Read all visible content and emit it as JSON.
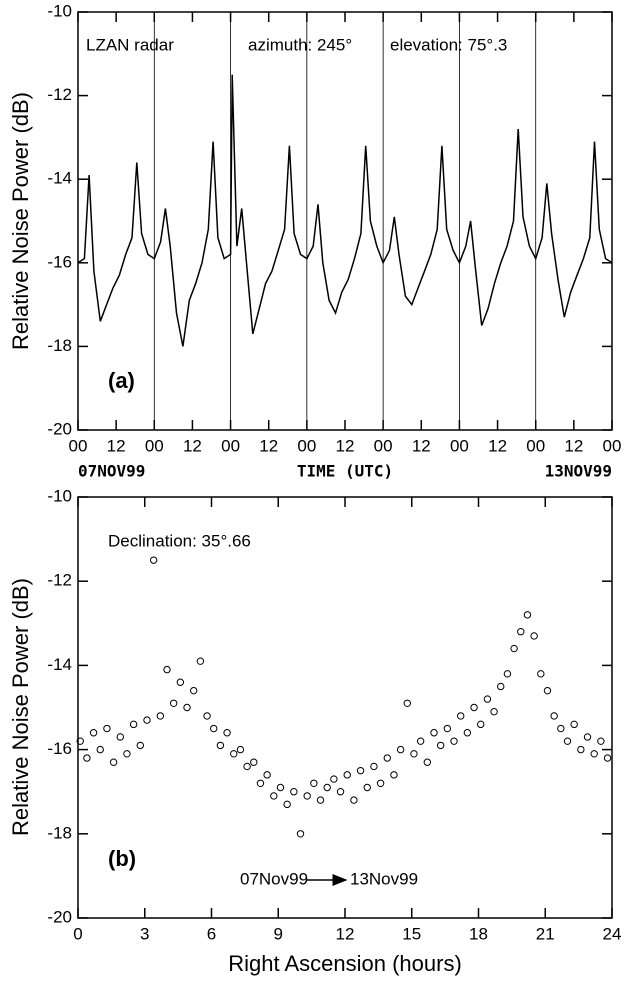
{
  "chart_data": [
    {
      "type": "line",
      "ylabel": "Relative Noise Power (dB)",
      "xlabel": "TIME (UTC)",
      "annotations": [
        "LZAN radar",
        "azimuth: 245°",
        "elevation: 75°.3",
        "(a)",
        "07NOV99",
        "13NOV99"
      ],
      "xlim": [
        0,
        168
      ],
      "ylim": [
        -20,
        -10
      ],
      "yticks": [
        -20,
        -18,
        -16,
        -14,
        -12,
        -10
      ],
      "xticks": [
        {
          "value": 0,
          "label": "00"
        },
        {
          "value": 12,
          "label": "12"
        },
        {
          "value": 24,
          "label": "00"
        },
        {
          "value": 36,
          "label": "12"
        },
        {
          "value": 48,
          "label": "00"
        },
        {
          "value": 60,
          "label": "12"
        },
        {
          "value": 72,
          "label": "00"
        },
        {
          "value": 84,
          "label": "12"
        },
        {
          "value": 96,
          "label": "00"
        },
        {
          "value": 108,
          "label": "12"
        },
        {
          "value": 120,
          "label": "00"
        },
        {
          "value": 132,
          "label": "12"
        },
        {
          "value": 144,
          "label": "00"
        },
        {
          "value": 156,
          "label": "12"
        },
        {
          "value": 168,
          "label": "00"
        }
      ],
      "vlines": [
        24,
        48,
        72,
        96,
        120,
        144
      ],
      "color": "#000000",
      "x": [
        0,
        2,
        3.5,
        5,
        7,
        9,
        11,
        13,
        15,
        17,
        18.5,
        20,
        22,
        24,
        26,
        27.5,
        29,
        31,
        33,
        35,
        37,
        39,
        41,
        42.5,
        44,
        46,
        48,
        48.5,
        50,
        51.5,
        53,
        55,
        57,
        59,
        61,
        63,
        65,
        66.5,
        68,
        70,
        72,
        74,
        75.5,
        77,
        79,
        81,
        83,
        85,
        87,
        89,
        90.5,
        92,
        94,
        96,
        98,
        99.5,
        101,
        103,
        105,
        107,
        109,
        111,
        113,
        114.5,
        116,
        118,
        120,
        122,
        123.5,
        125,
        127,
        129,
        131,
        133,
        135,
        137,
        138.5,
        140,
        142,
        144,
        146,
        147.5,
        149,
        151,
        153,
        155,
        157,
        159,
        161,
        162.5,
        164,
        166,
        168
      ],
      "values": [
        -16.0,
        -15.9,
        -13.9,
        -16.2,
        -17.4,
        -17.0,
        -16.6,
        -16.3,
        -15.8,
        -15.4,
        -13.6,
        -15.3,
        -15.8,
        -15.9,
        -15.5,
        -14.7,
        -15.6,
        -17.2,
        -18.0,
        -16.9,
        -16.5,
        -16.0,
        -15.2,
        -13.1,
        -15.4,
        -15.9,
        -15.8,
        -11.5,
        -15.6,
        -14.7,
        -16.0,
        -17.7,
        -17.1,
        -16.5,
        -16.2,
        -15.7,
        -15.2,
        -13.2,
        -15.3,
        -15.8,
        -15.9,
        -15.6,
        -14.6,
        -16.0,
        -16.9,
        -17.2,
        -16.7,
        -16.4,
        -15.9,
        -15.3,
        -13.2,
        -15.0,
        -15.6,
        -16.0,
        -15.7,
        -14.9,
        -15.8,
        -16.8,
        -17.0,
        -16.6,
        -16.2,
        -15.8,
        -15.2,
        -13.2,
        -15.2,
        -15.7,
        -16.0,
        -15.6,
        -15.0,
        -16.1,
        -17.5,
        -17.1,
        -16.5,
        -16.0,
        -15.6,
        -15.0,
        -12.8,
        -14.9,
        -15.6,
        -15.9,
        -15.4,
        -14.1,
        -15.3,
        -16.4,
        -17.3,
        -16.7,
        -16.3,
        -15.9,
        -15.4,
        -13.1,
        -15.2,
        -15.9,
        -16.0
      ]
    },
    {
      "type": "scatter",
      "ylabel": "Relative Noise Power (dB)",
      "xlabel": "Right Ascension (hours)",
      "annotations": [
        "Declination: 35°.66",
        "(b)",
        "07Nov99",
        "13Nov99"
      ],
      "xlim": [
        0,
        24
      ],
      "ylim": [
        -20,
        -10
      ],
      "yticks": [
        -20,
        -18,
        -16,
        -14,
        -12,
        -10
      ],
      "xticks": [
        0,
        3,
        6,
        9,
        12,
        15,
        18,
        21,
        24
      ],
      "color": "#000000",
      "x": [
        0.1,
        0.4,
        0.7,
        1.0,
        1.3,
        1.6,
        1.9,
        2.2,
        2.5,
        2.8,
        3.1,
        3.4,
        3.7,
        4.0,
        4.3,
        4.6,
        4.9,
        5.2,
        5.5,
        5.8,
        6.1,
        6.4,
        6.7,
        7.0,
        7.3,
        7.6,
        7.9,
        8.2,
        8.5,
        8.8,
        9.1,
        9.4,
        9.7,
        10.0,
        10.3,
        10.6,
        10.9,
        11.2,
        11.5,
        11.8,
        12.1,
        12.4,
        12.7,
        13.0,
        13.3,
        13.6,
        13.9,
        14.2,
        14.5,
        14.8,
        15.1,
        15.4,
        15.7,
        16.0,
        16.3,
        16.6,
        16.9,
        17.2,
        17.5,
        17.8,
        18.1,
        18.4,
        18.7,
        19.0,
        19.3,
        19.6,
        19.9,
        20.2,
        20.5,
        20.8,
        21.1,
        21.4,
        21.7,
        22.0,
        22.3,
        22.6,
        22.9,
        23.2,
        23.5,
        23.8
      ],
      "values": [
        -15.8,
        -16.2,
        -15.6,
        -16.0,
        -15.5,
        -16.3,
        -15.7,
        -16.1,
        -15.4,
        -15.9,
        -15.3,
        -11.5,
        -15.2,
        -14.1,
        -14.9,
        -14.4,
        -15.0,
        -14.6,
        -13.9,
        -15.2,
        -15.5,
        -15.9,
        -15.6,
        -16.1,
        -16.0,
        -16.4,
        -16.3,
        -16.8,
        -16.6,
        -17.1,
        -16.9,
        -17.3,
        -17.0,
        -18.0,
        -17.1,
        -16.8,
        -17.2,
        -16.9,
        -16.7,
        -17.0,
        -16.6,
        -17.2,
        -16.5,
        -16.9,
        -16.4,
        -16.8,
        -16.2,
        -16.6,
        -16.0,
        -14.9,
        -16.1,
        -15.8,
        -16.3,
        -15.6,
        -15.9,
        -15.5,
        -15.8,
        -15.2,
        -15.6,
        -15.0,
        -15.4,
        -14.8,
        -15.1,
        -14.5,
        -14.2,
        -13.6,
        -13.2,
        -12.8,
        -13.3,
        -14.2,
        -14.6,
        -15.2,
        -15.5,
        -15.8,
        -15.4,
        -16.0,
        -15.7,
        -16.1,
        -15.8,
        -16.2
      ]
    }
  ]
}
